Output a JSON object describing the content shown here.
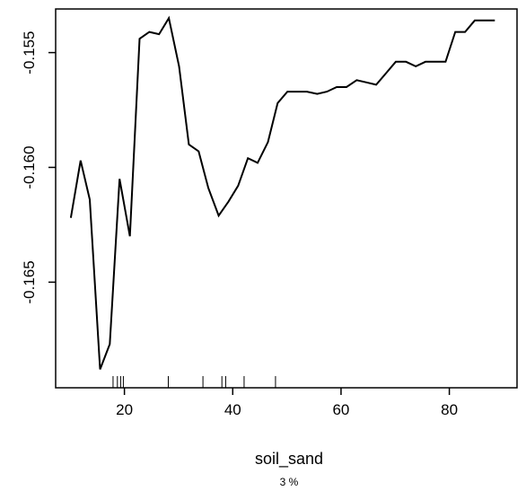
{
  "chart_data": {
    "type": "line",
    "title": "",
    "xlabel": "soil_sand",
    "ylabel": "",
    "sublabel": "3 %",
    "xlim": [
      7.3,
      92.5
    ],
    "ylim": [
      -0.1696,
      -0.1531
    ],
    "x_ticks": [
      20,
      40,
      60,
      80
    ],
    "x_tick_labels": [
      "20",
      "40",
      "60",
      "80"
    ],
    "y_ticks": [
      -0.155,
      -0.16,
      -0.165
    ],
    "y_tick_labels": [
      "-0.155",
      "-0.160",
      "-0.165"
    ],
    "grid": false,
    "legend": "none",
    "line_color": "#000000",
    "series": [
      {
        "x": [
          10.1,
          11.9,
          13.6,
          15.5,
          17.3,
          19.1,
          21.0,
          22.8,
          24.6,
          26.4,
          28.2,
          30.1,
          31.9,
          33.7,
          35.5,
          37.4,
          39.2,
          41.0,
          42.8,
          44.6,
          46.5,
          48.3,
          50.1,
          51.9,
          53.7,
          55.6,
          57.4,
          59.2,
          61.0,
          62.9,
          64.7,
          66.5,
          68.3,
          70.1,
          72.0,
          73.8,
          75.6,
          77.4,
          79.3,
          81.1,
          82.9,
          84.7,
          86.5,
          88.4
        ],
        "y": [
          -0.1622,
          -0.1597,
          -0.1614,
          -0.1688,
          -0.1677,
          -0.1605,
          -0.163,
          -0.1544,
          -0.1541,
          -0.1542,
          -0.1535,
          -0.1556,
          -0.159,
          -0.1593,
          -0.1609,
          -0.1621,
          -0.1615,
          -0.1608,
          -0.1596,
          -0.1598,
          -0.1589,
          -0.1572,
          -0.1567,
          -0.1567,
          -0.1567,
          -0.1568,
          -0.1567,
          -0.1565,
          -0.1565,
          -0.1562,
          -0.1563,
          -0.1564,
          -0.1559,
          -0.1554,
          -0.1554,
          -0.1556,
          -0.1554,
          -0.1554,
          -0.1554,
          -0.1541,
          -0.1541,
          -0.1536,
          -0.1536,
          -0.1536
        ]
      }
    ],
    "rug": [
      17.9,
      18.7,
      19.3,
      19.8,
      28.1,
      34.5,
      38.0,
      38.7,
      42.1,
      47.9
    ]
  }
}
